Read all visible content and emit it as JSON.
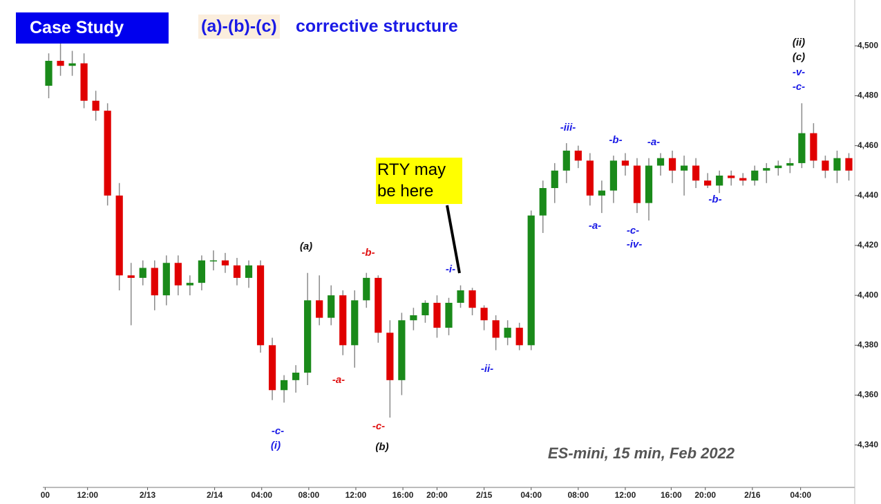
{
  "chart_data": {
    "type": "candlestick",
    "badge": "Case Study",
    "title_highlight": "(a)-(b)-(c)",
    "title": "corrective structure",
    "callout": "RTY may be here",
    "up_color": "#1a8a1a",
    "down_color": "#e00000",
    "wick_color": "#8a8a8a",
    "open": [
      4484,
      4494,
      4492,
      4493,
      4478,
      4474,
      4440,
      4408,
      4407,
      4411,
      4400,
      4413,
      4404,
      4405,
      4414,
      4414,
      4412,
      4407,
      4412,
      4380,
      4362,
      4366,
      4369,
      4398,
      4391,
      4400,
      4380,
      4398,
      4407,
      4385,
      4366,
      4390,
      4392,
      4397,
      4387,
      4397,
      4402,
      4395,
      4390,
      4383,
      4387,
      4380,
      4432,
      4443,
      4450,
      4458,
      4454,
      4440,
      4442,
      4454,
      4452,
      4437,
      4452,
      4455,
      4450,
      4452,
      4446,
      4444,
      4448,
      4447,
      4446,
      4450,
      4451,
      4452,
      4453,
      4465,
      4454,
      4450,
      4455
    ],
    "high": [
      4497,
      4501,
      4498,
      4497,
      4482,
      4477,
      4445,
      4413,
      4414,
      4414,
      4416,
      4416,
      4408,
      4416,
      4418,
      4417,
      4415,
      4414,
      4414,
      4383,
      4368,
      4372,
      4409,
      4408,
      4404,
      4402,
      4402,
      4409,
      4408,
      4390,
      4393,
      4395,
      4398,
      4400,
      4399,
      4404,
      4403,
      4396,
      4392,
      4390,
      4389,
      4434,
      4446,
      4453,
      4461,
      4460,
      4457,
      4446,
      4456,
      4457,
      4455,
      4455,
      4457,
      4458,
      4456,
      4455,
      4449,
      4450,
      4450,
      4449,
      4452,
      4453,
      4454,
      4455,
      4477,
      4469,
      4456,
      4458,
      4457
    ],
    "low": [
      4479,
      4488,
      4488,
      4475,
      4470,
      4436,
      4402,
      4388,
      4404,
      4394,
      4396,
      4400,
      4400,
      4402,
      4410,
      4409,
      4404,
      4403,
      4377,
      4358,
      4357,
      4361,
      4364,
      4388,
      4388,
      4376,
      4371,
      4395,
      4381,
      4351,
      4360,
      4386,
      4389,
      4383,
      4384,
      4395,
      4392,
      4386,
      4378,
      4380,
      4378,
      4378,
      4425,
      4437,
      4445,
      4451,
      4436,
      4433,
      4437,
      4448,
      4433,
      4430,
      4448,
      4445,
      4440,
      4443,
      4443,
      4441,
      4444,
      4444,
      4444,
      4445,
      4448,
      4449,
      4451,
      4451,
      4447,
      4445,
      4446
    ],
    "close": [
      4494,
      4492,
      4493,
      4478,
      4474,
      4440,
      4408,
      4407,
      4411,
      4400,
      4413,
      4404,
      4405,
      4414,
      4414,
      4412,
      4407,
      4412,
      4380,
      4362,
      4366,
      4369,
      4398,
      4391,
      4400,
      4380,
      4398,
      4407,
      4385,
      4366,
      4390,
      4392,
      4397,
      4387,
      4397,
      4402,
      4395,
      4390,
      4383,
      4387,
      4380,
      4432,
      4443,
      4450,
      4458,
      4454,
      4440,
      4442,
      4454,
      4452,
      4437,
      4452,
      4455,
      4450,
      4452,
      4446,
      4444,
      4448,
      4447,
      4446,
      4450,
      4451,
      4452,
      4453,
      4465,
      4454,
      4450,
      4455,
      4450
    ],
    "xlim": [
      -0.5,
      68.5
    ],
    "xticks": [
      {
        "value": -0.3,
        "label": "00"
      },
      {
        "value": 3.3,
        "label": "12:00"
      },
      {
        "value": 8.4,
        "label": "2/13"
      },
      {
        "value": 14.1,
        "label": "2/14"
      },
      {
        "value": 18.1,
        "label": "04:00"
      },
      {
        "value": 22.1,
        "label": "08:00"
      },
      {
        "value": 26.1,
        "label": "12:00"
      },
      {
        "value": 30.1,
        "label": "16:00"
      },
      {
        "value": 33,
        "label": "20:00"
      },
      {
        "value": 37,
        "label": "2/15"
      },
      {
        "value": 41,
        "label": "04:00"
      },
      {
        "value": 45,
        "label": "08:00"
      },
      {
        "value": 49,
        "label": "12:00"
      },
      {
        "value": 52.9,
        "label": "16:00"
      },
      {
        "value": 55.8,
        "label": "20:00"
      },
      {
        "value": 59.8,
        "label": "2/16"
      },
      {
        "value": 63.9,
        "label": "04:00"
      }
    ],
    "ylim": [
      4323,
      4517
    ],
    "yticks": [
      {
        "value": 4340,
        "label": "4,340"
      },
      {
        "value": 4360,
        "label": "4,360"
      },
      {
        "value": 4380,
        "label": "4,380"
      },
      {
        "value": 4400,
        "label": "4,400"
      },
      {
        "value": 4420,
        "label": "4,420"
      },
      {
        "value": 4440,
        "label": "4,440"
      },
      {
        "value": 4460,
        "label": "4,460"
      },
      {
        "value": 4480,
        "label": "4,480"
      },
      {
        "value": 4500,
        "label": "4,500"
      }
    ],
    "annotations": [
      "(ii)",
      "(c)",
      "-v-",
      "-c-",
      "-iii-",
      "-b-",
      "-a-",
      "-a-",
      "-c-",
      "-iv-",
      "-b-",
      "(a)",
      "-b-",
      "-i-",
      "-a-",
      "-ii-",
      "-c-",
      "(i)",
      "-c-",
      "(b)",
      "ES-mini, 15 min, Feb 2022"
    ]
  }
}
